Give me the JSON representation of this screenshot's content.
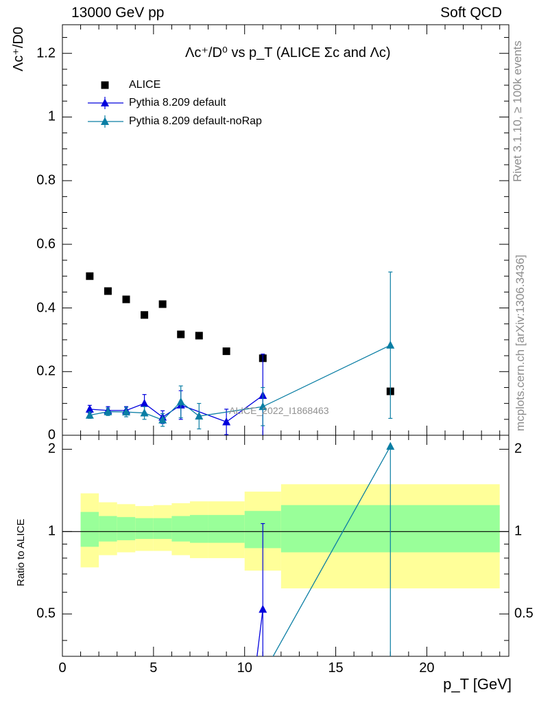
{
  "header": {
    "left": "13000 GeV pp",
    "right": "Soft QCD"
  },
  "side_labels": {
    "rivet": "Rivet 3.1.10, ≥ 100k events",
    "mcplots": "mcplots.cern.ch [arXiv:1306.3436]"
  },
  "colors": {
    "data": "#000000",
    "default": "#0000dd",
    "noRap": "#0a7ea4",
    "band_inner": "#99ff99",
    "band_outer": "#ffff99"
  },
  "chart_data": [
    {
      "type": "scatter",
      "panel": "main",
      "title": "Λc⁺/D⁰ vs p_T (ALICE Σc and Λc)",
      "ylabel": "Λc⁺/D0",
      "watermark": "ALICE_2022_I1868463",
      "xlim": [
        0,
        24.5
      ],
      "ylim": [
        0,
        1.29
      ],
      "yticks": [
        0,
        0.2,
        0.4,
        0.6,
        0.8,
        1,
        1.2
      ],
      "legend_position": "top-left",
      "series": [
        {
          "name": "ALICE",
          "marker": "square",
          "x": [
            1.5,
            2.5,
            3.5,
            4.5,
            5.5,
            6.5,
            7.5,
            9,
            11,
            18
          ],
          "y": [
            0.5,
            0.453,
            0.427,
            0.378,
            0.412,
            0.317,
            0.313,
            0.264,
            0.242,
            0.138
          ]
        },
        {
          "name": "Pythia 8.209 default",
          "marker": "triangle",
          "x": [
            1.5,
            2.5,
            3.5,
            4.5,
            5.5,
            6.5,
            9,
            11
          ],
          "y": [
            0.082,
            0.078,
            0.078,
            0.1,
            0.057,
            0.095,
            0.042,
            0.125
          ],
          "yerr": [
            0.012,
            0.012,
            0.012,
            0.028,
            0.02,
            0.045,
            0.04,
            0.13
          ]
        },
        {
          "name": "Pythia 8.209 default-noRap",
          "marker": "triangle",
          "x": [
            1.5,
            2.5,
            3.5,
            4.5,
            5.5,
            6.5,
            7.5,
            11,
            18
          ],
          "y": [
            0.063,
            0.074,
            0.073,
            0.07,
            0.048,
            0.105,
            0.06,
            0.09,
            0.283
          ],
          "yerr": [
            0.01,
            0.012,
            0.015,
            0.02,
            0.02,
            0.05,
            0.04,
            0.06,
            0.23
          ]
        }
      ]
    },
    {
      "type": "line",
      "panel": "ratio",
      "ylabel": "Ratio to ALICE",
      "xlabel": "p_T [GeV]",
      "xlim": [
        0,
        24.5
      ],
      "ylim": [
        0.35,
        2.25
      ],
      "log_y": true,
      "yticks": [
        0.5,
        1,
        2
      ],
      "xticks": [
        0,
        5,
        10,
        15,
        20
      ],
      "bands": [
        {
          "x0": 1,
          "x1": 2,
          "inner": [
            0.88,
            1.18
          ],
          "outer": [
            0.74,
            1.38
          ]
        },
        {
          "x0": 2,
          "x1": 3,
          "inner": [
            0.92,
            1.14
          ],
          "outer": [
            0.82,
            1.28
          ]
        },
        {
          "x0": 3,
          "x1": 4,
          "inner": [
            0.93,
            1.13
          ],
          "outer": [
            0.84,
            1.26
          ]
        },
        {
          "x0": 4,
          "x1": 5,
          "inner": [
            0.94,
            1.12
          ],
          "outer": [
            0.85,
            1.24
          ]
        },
        {
          "x0": 5,
          "x1": 6,
          "inner": [
            0.94,
            1.12
          ],
          "outer": [
            0.85,
            1.25
          ]
        },
        {
          "x0": 6,
          "x1": 7,
          "inner": [
            0.92,
            1.14
          ],
          "outer": [
            0.82,
            1.27
          ]
        },
        {
          "x0": 7,
          "x1": 8,
          "inner": [
            0.91,
            1.15
          ],
          "outer": [
            0.8,
            1.29
          ]
        },
        {
          "x0": 8,
          "x1": 10,
          "inner": [
            0.91,
            1.15
          ],
          "outer": [
            0.8,
            1.29
          ]
        },
        {
          "x0": 10,
          "x1": 12,
          "inner": [
            0.87,
            1.19
          ],
          "outer": [
            0.72,
            1.4
          ]
        },
        {
          "x0": 12,
          "x1": 24,
          "inner": [
            0.84,
            1.25
          ],
          "outer": [
            0.62,
            1.49
          ]
        }
      ],
      "series": [
        {
          "name": "Pythia 8.209 default",
          "x": [
            10.5,
            11
          ],
          "y": [
            0.28,
            0.52
          ],
          "yerr_low": [
            0,
            0.52
          ],
          "yerr_high": [
            0,
            0.55
          ]
        },
        {
          "name": "Pythia 8.209 default-noRap",
          "x": [
            11,
            18
          ],
          "y": [
            0.3,
            2.05
          ],
          "yerr_low": [
            0,
            1.8
          ],
          "yerr_high": [
            0,
            0
          ]
        }
      ]
    }
  ]
}
